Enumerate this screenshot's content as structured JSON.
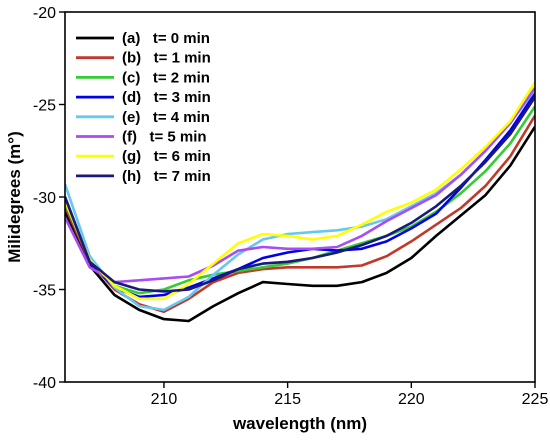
{
  "chart_data": {
    "type": "line",
    "title": "",
    "xlabel": "wavelength (nm)",
    "ylabel": "Milidegrees (m°)",
    "xlim": [
      206,
      225
    ],
    "ylim": [
      -40,
      -20
    ],
    "xticks": [
      210,
      215,
      220,
      225
    ],
    "yticks": [
      -40,
      -35,
      -30,
      -25,
      -20
    ],
    "x": [
      206,
      207,
      208,
      209,
      210,
      211,
      212,
      213,
      214,
      215,
      216,
      217,
      218,
      219,
      220,
      221,
      222,
      223,
      224,
      225
    ],
    "legend_position": "top-left",
    "grid": false,
    "series": [
      {
        "name": "(a)   t= 0 min",
        "color": "#000000",
        "values": [
          -30.8,
          -33.7,
          -35.3,
          -36.1,
          -36.6,
          -36.7,
          -35.9,
          -35.2,
          -34.6,
          -34.7,
          -34.8,
          -34.8,
          -34.6,
          -34.1,
          -33.3,
          -32.1,
          -31.0,
          -29.9,
          -28.3,
          -26.2
        ]
      },
      {
        "name": "(b)   t= 1 min",
        "color": "#c0392b",
        "values": [
          -30.5,
          -33.5,
          -35.0,
          -35.8,
          -36.2,
          -35.5,
          -34.6,
          -34.1,
          -33.9,
          -33.8,
          -33.8,
          -33.8,
          -33.7,
          -33.2,
          -32.4,
          -31.5,
          -30.6,
          -29.4,
          -27.8,
          -25.6
        ]
      },
      {
        "name": "(c)   t= 2 min",
        "color": "#33cc33",
        "values": [
          -30.3,
          -33.4,
          -34.8,
          -35.2,
          -35.0,
          -34.5,
          -34.2,
          -34.0,
          -33.8,
          -33.6,
          -33.3,
          -32.9,
          -32.5,
          -32.1,
          -31.6,
          -30.8,
          -29.8,
          -28.6,
          -27.1,
          -25.1
        ]
      },
      {
        "name": "(d)   t= 3 min",
        "color": "#0000ee",
        "values": [
          -30.0,
          -33.5,
          -34.9,
          -35.4,
          -35.3,
          -34.9,
          -34.4,
          -33.9,
          -33.3,
          -33.0,
          -32.8,
          -32.9,
          -32.8,
          -32.4,
          -31.7,
          -30.9,
          -29.5,
          -28.0,
          -26.4,
          -24.4
        ]
      },
      {
        "name": "(e)   t= 4 min",
        "color": "#66c7f0",
        "values": [
          -29.3,
          -33.2,
          -34.9,
          -35.9,
          -36.1,
          -35.4,
          -34.2,
          -33.1,
          -32.3,
          -32.0,
          -31.9,
          -31.8,
          -31.6,
          -31.2,
          -30.5,
          -29.8,
          -28.8,
          -27.5,
          -26.0,
          -24.2
        ]
      },
      {
        "name": "(f)   t= 5 min",
        "color": "#a84cf5",
        "values": [
          -31.1,
          -33.8,
          -34.6,
          -34.5,
          -34.4,
          -34.3,
          -33.7,
          -32.9,
          -32.7,
          -32.8,
          -32.8,
          -32.7,
          -32.1,
          -31.3,
          -30.6,
          -29.9,
          -28.8,
          -27.5,
          -26.0,
          -24.1
        ]
      },
      {
        "name": "(g)   t= 6 min",
        "color": "#ffff00",
        "values": [
          -30.2,
          -33.4,
          -34.8,
          -35.5,
          -35.5,
          -34.7,
          -33.6,
          -32.5,
          -32.0,
          -32.1,
          -32.3,
          -32.1,
          -31.5,
          -30.8,
          -30.3,
          -29.6,
          -28.5,
          -27.3,
          -25.9,
          -23.8
        ]
      },
      {
        "name": "(h)   t= 7 min",
        "color": "#1a1a7a",
        "values": [
          -30.0,
          -33.5,
          -34.6,
          -35.0,
          -35.1,
          -35.0,
          -34.5,
          -33.9,
          -33.6,
          -33.5,
          -33.3,
          -33.0,
          -32.6,
          -32.1,
          -31.4,
          -30.5,
          -29.4,
          -28.1,
          -26.6,
          -24.6
        ]
      }
    ]
  }
}
